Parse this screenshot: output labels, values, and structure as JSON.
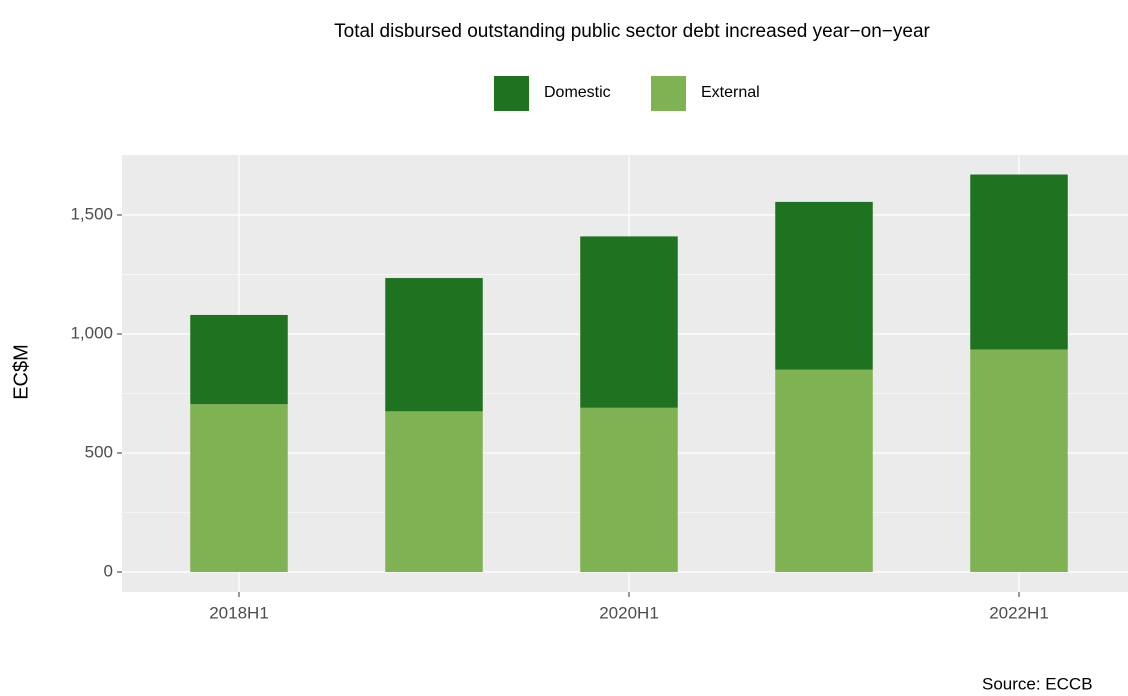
{
  "chart_data": {
    "type": "stacked_bar",
    "title": "Total disbursed outstanding public sector debt increased year−on−year",
    "y_label": "EC$M",
    "source": "Source: ECCB",
    "categories": [
      "2018H1",
      null,
      "2020H1",
      null,
      "2022H1"
    ],
    "series": [
      {
        "name": "Domestic",
        "color": "#1f721f",
        "values": [
          375,
          560,
          720,
          705,
          735
        ]
      },
      {
        "name": "External",
        "color": "#7fb253",
        "values": [
          705,
          675,
          690,
          850,
          935
        ]
      }
    ],
    "ylim": [
      -84,
      1752
    ],
    "yticks": [
      0,
      500,
      {
        "value": 1000,
        "label": "1,000"
      },
      {
        "value": 1500,
        "label": "1,500"
      }
    ],
    "grid": true
  }
}
